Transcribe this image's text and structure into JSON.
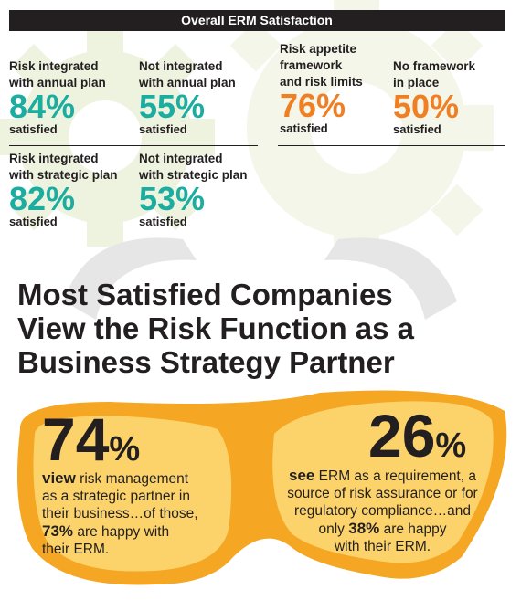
{
  "header": {
    "title": "Overall ERM Satisfaction"
  },
  "stats": [
    {
      "label_line1": "Risk integrated",
      "label_line2": "with annual plan",
      "label_line3": "",
      "value": "84%",
      "suffix": "satisfied",
      "color": "#1aada0"
    },
    {
      "label_line1": "Not integrated",
      "label_line2": "with annual plan",
      "label_line3": "",
      "value": "55%",
      "suffix": "satisfied",
      "color": "#1aada0"
    },
    {
      "label_line1": "Risk appetite",
      "label_line2": "framework",
      "label_line3": "and risk limits",
      "value": "76%",
      "suffix": "satisfied",
      "color": "#f07f23"
    },
    {
      "label_line1": "No framework",
      "label_line2": "in place",
      "label_line3": "",
      "value": "50%",
      "suffix": "satisfied",
      "color": "#f07f23"
    },
    {
      "label_line1": "Risk integrated",
      "label_line2": "with strategic plan",
      "label_line3": "",
      "value": "82%",
      "suffix": "satisfied",
      "color": "#1aada0"
    },
    {
      "label_line1": "Not integrated",
      "label_line2": "with strategic plan",
      "label_line3": "",
      "value": "53%",
      "suffix": "satisfied",
      "color": "#1aada0"
    }
  ],
  "headline": {
    "line1": "Most Satisfied Companies",
    "line2": "View the Risk Function as a",
    "line3": "Business Strategy Partner"
  },
  "left": {
    "number": "74",
    "percent_sign": "%",
    "verb": "view",
    "line1_rest": " risk management",
    "line2": "as a strategic partner in",
    "line3": "their business…of those,",
    "happy_pct": "73%",
    "line4_rest": " are happy with",
    "line5": "their ERM."
  },
  "right": {
    "number": "26",
    "percent_sign": "%",
    "verb": "see",
    "line1_rest": " ERM as a requirement, a",
    "line2": "source of risk assurance or for",
    "line3": "regulatory compliance…and",
    "line4_pre": "only ",
    "happy_pct": "38%",
    "line4_rest": " are happy",
    "line5": "with their ERM."
  },
  "colors": {
    "teal": "#1aada0",
    "orange": "#f07f23",
    "goggle_yellow": "#f8b334",
    "goggle_rim": "#f5a623",
    "dark": "#231f20",
    "lens": "#fcd36b"
  }
}
